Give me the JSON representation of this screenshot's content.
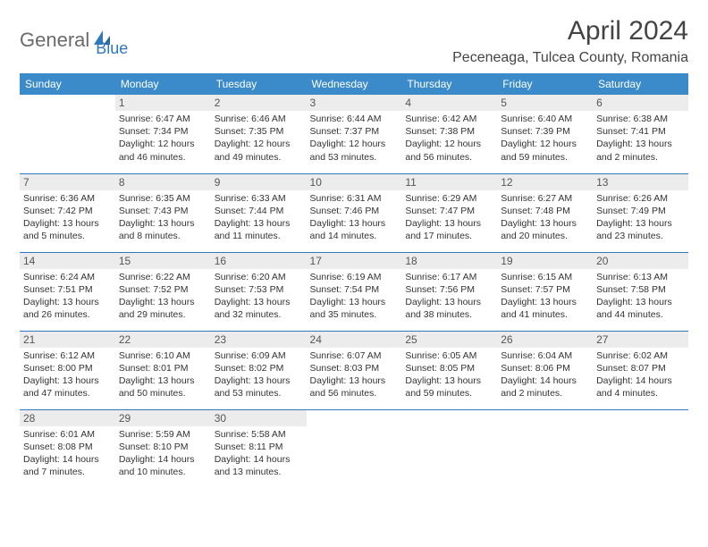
{
  "logo": {
    "part1": "General",
    "part2": "Blue"
  },
  "title": "April 2024",
  "location": "Peceneaga, Tulcea County, Romania",
  "colors": {
    "header_bg": "#3b8bca",
    "header_text": "#ffffff",
    "border": "#2e78bd",
    "daynum_bg": "#ececec",
    "body_text": "#333333",
    "logo_gray": "#6a6a6a",
    "logo_blue": "#2e78bd"
  },
  "weekdays": [
    "Sunday",
    "Monday",
    "Tuesday",
    "Wednesday",
    "Thursday",
    "Friday",
    "Saturday"
  ],
  "weeks": [
    [
      {
        "n": "",
        "sr": "",
        "ss": "",
        "dl": ""
      },
      {
        "n": "1",
        "sr": "Sunrise: 6:47 AM",
        "ss": "Sunset: 7:34 PM",
        "dl": "Daylight: 12 hours and 46 minutes."
      },
      {
        "n": "2",
        "sr": "Sunrise: 6:46 AM",
        "ss": "Sunset: 7:35 PM",
        "dl": "Daylight: 12 hours and 49 minutes."
      },
      {
        "n": "3",
        "sr": "Sunrise: 6:44 AM",
        "ss": "Sunset: 7:37 PM",
        "dl": "Daylight: 12 hours and 53 minutes."
      },
      {
        "n": "4",
        "sr": "Sunrise: 6:42 AM",
        "ss": "Sunset: 7:38 PM",
        "dl": "Daylight: 12 hours and 56 minutes."
      },
      {
        "n": "5",
        "sr": "Sunrise: 6:40 AM",
        "ss": "Sunset: 7:39 PM",
        "dl": "Daylight: 12 hours and 59 minutes."
      },
      {
        "n": "6",
        "sr": "Sunrise: 6:38 AM",
        "ss": "Sunset: 7:41 PM",
        "dl": "Daylight: 13 hours and 2 minutes."
      }
    ],
    [
      {
        "n": "7",
        "sr": "Sunrise: 6:36 AM",
        "ss": "Sunset: 7:42 PM",
        "dl": "Daylight: 13 hours and 5 minutes."
      },
      {
        "n": "8",
        "sr": "Sunrise: 6:35 AM",
        "ss": "Sunset: 7:43 PM",
        "dl": "Daylight: 13 hours and 8 minutes."
      },
      {
        "n": "9",
        "sr": "Sunrise: 6:33 AM",
        "ss": "Sunset: 7:44 PM",
        "dl": "Daylight: 13 hours and 11 minutes."
      },
      {
        "n": "10",
        "sr": "Sunrise: 6:31 AM",
        "ss": "Sunset: 7:46 PM",
        "dl": "Daylight: 13 hours and 14 minutes."
      },
      {
        "n": "11",
        "sr": "Sunrise: 6:29 AM",
        "ss": "Sunset: 7:47 PM",
        "dl": "Daylight: 13 hours and 17 minutes."
      },
      {
        "n": "12",
        "sr": "Sunrise: 6:27 AM",
        "ss": "Sunset: 7:48 PM",
        "dl": "Daylight: 13 hours and 20 minutes."
      },
      {
        "n": "13",
        "sr": "Sunrise: 6:26 AM",
        "ss": "Sunset: 7:49 PM",
        "dl": "Daylight: 13 hours and 23 minutes."
      }
    ],
    [
      {
        "n": "14",
        "sr": "Sunrise: 6:24 AM",
        "ss": "Sunset: 7:51 PM",
        "dl": "Daylight: 13 hours and 26 minutes."
      },
      {
        "n": "15",
        "sr": "Sunrise: 6:22 AM",
        "ss": "Sunset: 7:52 PM",
        "dl": "Daylight: 13 hours and 29 minutes."
      },
      {
        "n": "16",
        "sr": "Sunrise: 6:20 AM",
        "ss": "Sunset: 7:53 PM",
        "dl": "Daylight: 13 hours and 32 minutes."
      },
      {
        "n": "17",
        "sr": "Sunrise: 6:19 AM",
        "ss": "Sunset: 7:54 PM",
        "dl": "Daylight: 13 hours and 35 minutes."
      },
      {
        "n": "18",
        "sr": "Sunrise: 6:17 AM",
        "ss": "Sunset: 7:56 PM",
        "dl": "Daylight: 13 hours and 38 minutes."
      },
      {
        "n": "19",
        "sr": "Sunrise: 6:15 AM",
        "ss": "Sunset: 7:57 PM",
        "dl": "Daylight: 13 hours and 41 minutes."
      },
      {
        "n": "20",
        "sr": "Sunrise: 6:13 AM",
        "ss": "Sunset: 7:58 PM",
        "dl": "Daylight: 13 hours and 44 minutes."
      }
    ],
    [
      {
        "n": "21",
        "sr": "Sunrise: 6:12 AM",
        "ss": "Sunset: 8:00 PM",
        "dl": "Daylight: 13 hours and 47 minutes."
      },
      {
        "n": "22",
        "sr": "Sunrise: 6:10 AM",
        "ss": "Sunset: 8:01 PM",
        "dl": "Daylight: 13 hours and 50 minutes."
      },
      {
        "n": "23",
        "sr": "Sunrise: 6:09 AM",
        "ss": "Sunset: 8:02 PM",
        "dl": "Daylight: 13 hours and 53 minutes."
      },
      {
        "n": "24",
        "sr": "Sunrise: 6:07 AM",
        "ss": "Sunset: 8:03 PM",
        "dl": "Daylight: 13 hours and 56 minutes."
      },
      {
        "n": "25",
        "sr": "Sunrise: 6:05 AM",
        "ss": "Sunset: 8:05 PM",
        "dl": "Daylight: 13 hours and 59 minutes."
      },
      {
        "n": "26",
        "sr": "Sunrise: 6:04 AM",
        "ss": "Sunset: 8:06 PM",
        "dl": "Daylight: 14 hours and 2 minutes."
      },
      {
        "n": "27",
        "sr": "Sunrise: 6:02 AM",
        "ss": "Sunset: 8:07 PM",
        "dl": "Daylight: 14 hours and 4 minutes."
      }
    ],
    [
      {
        "n": "28",
        "sr": "Sunrise: 6:01 AM",
        "ss": "Sunset: 8:08 PM",
        "dl": "Daylight: 14 hours and 7 minutes."
      },
      {
        "n": "29",
        "sr": "Sunrise: 5:59 AM",
        "ss": "Sunset: 8:10 PM",
        "dl": "Daylight: 14 hours and 10 minutes."
      },
      {
        "n": "30",
        "sr": "Sunrise: 5:58 AM",
        "ss": "Sunset: 8:11 PM",
        "dl": "Daylight: 14 hours and 13 minutes."
      },
      {
        "n": "",
        "sr": "",
        "ss": "",
        "dl": ""
      },
      {
        "n": "",
        "sr": "",
        "ss": "",
        "dl": ""
      },
      {
        "n": "",
        "sr": "",
        "ss": "",
        "dl": ""
      },
      {
        "n": "",
        "sr": "",
        "ss": "",
        "dl": ""
      }
    ]
  ]
}
